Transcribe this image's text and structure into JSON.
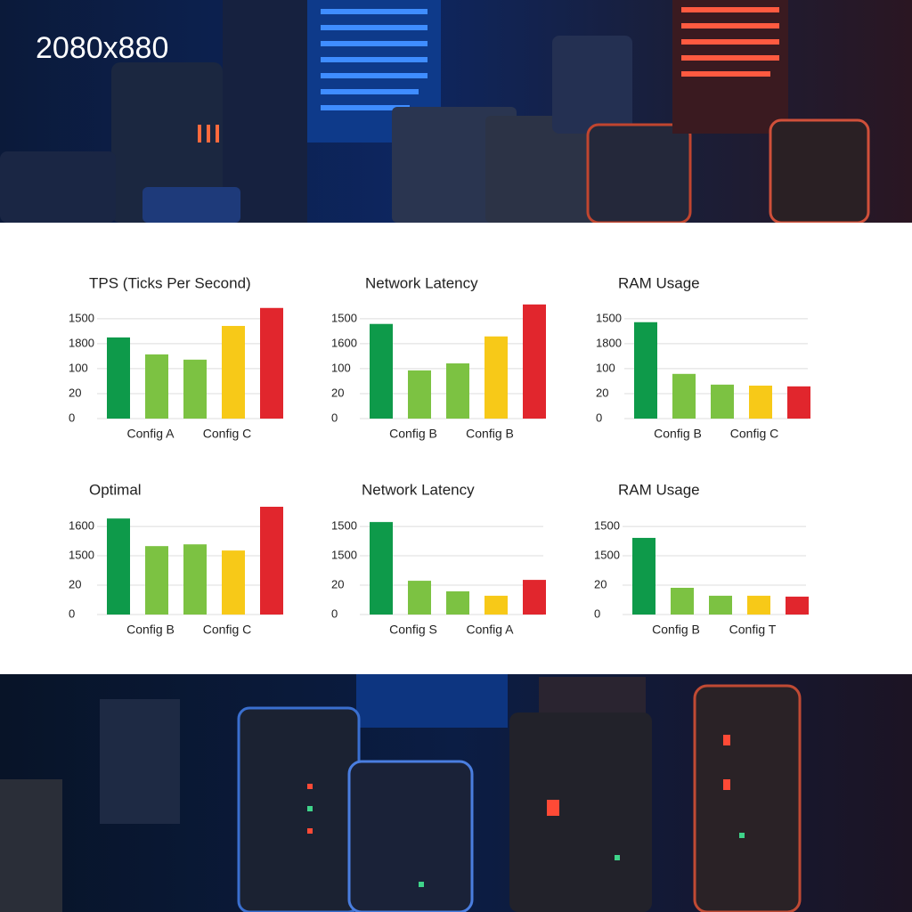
{
  "header": {
    "title": "2080x880"
  },
  "chart_data": [
    {
      "type": "bar",
      "title": "TPS (Ticks Per Second)",
      "categories": [
        null,
        "Config A",
        null,
        "Config C",
        null
      ],
      "values": [
        3.25,
        2.57,
        2.36,
        3.71,
        4.43
      ],
      "colors": [
        "#0e9a4a",
        "#7cc242",
        "#7cc242",
        "#f7c918",
        "#e1262d"
      ],
      "ylim": [
        0,
        4.6
      ],
      "yticks": [
        {
          "value": 0,
          "label": "0"
        },
        {
          "value": 1,
          "label": "20"
        },
        {
          "value": 2,
          "label": "100"
        },
        {
          "value": 3,
          "label": "1800"
        },
        {
          "value": 4,
          "label": "1500"
        }
      ],
      "grid": true
    },
    {
      "type": "bar",
      "title": "Network Latency",
      "categories": [
        null,
        "Config B",
        null,
        "Config B",
        null
      ],
      "values": [
        3.79,
        1.93,
        2.21,
        3.29,
        4.57
      ],
      "colors": [
        "#0e9a4a",
        "#7cc242",
        "#7cc242",
        "#f7c918",
        "#e1262d"
      ],
      "ylim": [
        0,
        4.6
      ],
      "yticks": [
        {
          "value": 0,
          "label": "0"
        },
        {
          "value": 1,
          "label": "20"
        },
        {
          "value": 2,
          "label": "100"
        },
        {
          "value": 3,
          "label": "1600"
        },
        {
          "value": 4,
          "label": "1500"
        }
      ],
      "grid": true
    },
    {
      "type": "bar",
      "title": "RAM Usage",
      "categories": [
        null,
        "Config B",
        null,
        "Config C",
        null
      ],
      "values": [
        3.86,
        1.79,
        1.36,
        1.32,
        1.29
      ],
      "colors": [
        "#0e9a4a",
        "#7cc242",
        "#7cc242",
        "#f7c918",
        "#e1262d"
      ],
      "ylim": [
        0,
        4.6
      ],
      "yticks": [
        {
          "value": 0,
          "label": "0"
        },
        {
          "value": 1,
          "label": "20"
        },
        {
          "value": 2,
          "label": "100"
        },
        {
          "value": 3,
          "label": "1800"
        },
        {
          "value": 4,
          "label": "1500"
        }
      ],
      "grid": true
    },
    {
      "type": "bar",
      "title": "Optimal",
      "categories": [
        null,
        "Config B",
        null,
        "Config C",
        null
      ],
      "values": [
        3.27,
        2.33,
        2.39,
        2.18,
        3.67
      ],
      "colors": [
        "#0e9a4a",
        "#7cc242",
        "#7cc242",
        "#f7c918",
        "#e1262d"
      ],
      "ylim": [
        0,
        3.7
      ],
      "yticks": [
        {
          "value": 0,
          "label": "0"
        },
        {
          "value": 1,
          "label": "20"
        },
        {
          "value": 2,
          "label": "1500"
        },
        {
          "value": 3,
          "label": "1600"
        }
      ],
      "grid": true
    },
    {
      "type": "bar",
      "title": "Network Latency",
      "categories": [
        null,
        "Config S",
        null,
        "Config A",
        null
      ],
      "values": [
        3.15,
        1.15,
        0.79,
        0.64,
        1.18
      ],
      "colors": [
        "#0e9a4a",
        "#7cc242",
        "#7cc242",
        "#f7c918",
        "#e1262d"
      ],
      "ylim": [
        0,
        3.7
      ],
      "yticks": [
        {
          "value": 0,
          "label": "0"
        },
        {
          "value": 1,
          "label": "20"
        },
        {
          "value": 2,
          "label": "1500"
        },
        {
          "value": 3,
          "label": "1500"
        }
      ],
      "grid": true
    },
    {
      "type": "bar",
      "title": "RAM Usage",
      "categories": [
        null,
        "Config B",
        null,
        "Config T",
        null
      ],
      "values": [
        2.61,
        0.91,
        0.64,
        0.64,
        0.61
      ],
      "colors": [
        "#0e9a4a",
        "#7cc242",
        "#7cc242",
        "#f7c918",
        "#e1262d"
      ],
      "ylim": [
        0,
        3.7
      ],
      "yticks": [
        {
          "value": 0,
          "label": "0"
        },
        {
          "value": 1,
          "label": "20"
        },
        {
          "value": 2,
          "label": "1500"
        },
        {
          "value": 3,
          "label": "1500"
        }
      ],
      "grid": true
    }
  ]
}
